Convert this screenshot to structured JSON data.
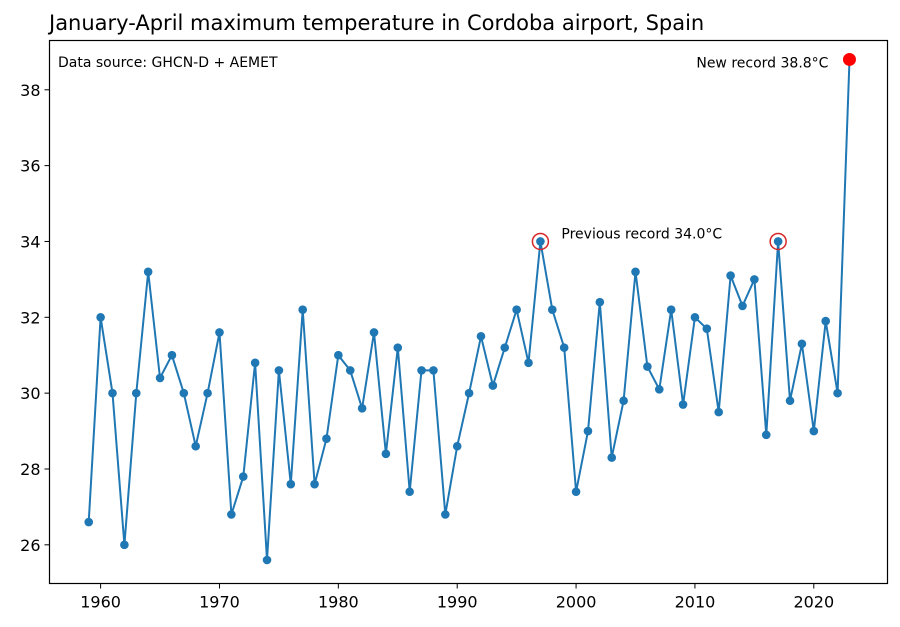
{
  "chart_data": {
    "type": "line",
    "title": "January-April maximum temperature in Cordoba airport, Spain",
    "xlabel": "",
    "ylabel": "",
    "xlim": [
      1955.7,
      2026.2
    ],
    "ylim": [
      24.98,
      39.3
    ],
    "grid": false,
    "xticks": [
      1960,
      1970,
      1980,
      1990,
      2000,
      2010,
      2020
    ],
    "yticks": [
      26,
      28,
      30,
      32,
      34,
      36,
      38
    ],
    "series": [
      {
        "name": "Jan-Apr max temperature",
        "color": "#1f77b4",
        "x": [
          1959,
          1960,
          1961,
          1962,
          1963,
          1964,
          1965,
          1966,
          1967,
          1968,
          1969,
          1970,
          1971,
          1972,
          1973,
          1974,
          1975,
          1976,
          1977,
          1978,
          1979,
          1980,
          1981,
          1982,
          1983,
          1984,
          1985,
          1986,
          1987,
          1988,
          1989,
          1990,
          1991,
          1992,
          1993,
          1994,
          1995,
          1996,
          1997,
          1998,
          1999,
          2000,
          2001,
          2002,
          2003,
          2004,
          2005,
          2006,
          2007,
          2008,
          2009,
          2010,
          2011,
          2012,
          2013,
          2014,
          2015,
          2016,
          2017,
          2018,
          2019,
          2020,
          2021,
          2022,
          2023
        ],
        "values": [
          26.6,
          32.0,
          30.0,
          26.0,
          30.0,
          33.2,
          30.4,
          31.0,
          30.0,
          28.6,
          30.0,
          31.6,
          26.8,
          27.8,
          30.8,
          25.6,
          30.6,
          27.6,
          32.2,
          27.6,
          28.8,
          31.0,
          30.6,
          29.6,
          31.6,
          28.4,
          31.2,
          27.4,
          30.6,
          30.6,
          26.8,
          28.6,
          30.0,
          31.5,
          30.2,
          31.2,
          32.2,
          30.8,
          34.0,
          32.2,
          31.2,
          27.4,
          29.0,
          32.4,
          28.3,
          29.8,
          33.2,
          30.7,
          30.1,
          32.2,
          29.7,
          32.0,
          31.7,
          29.5,
          33.1,
          32.3,
          33.0,
          28.9,
          34.0,
          29.8,
          31.3,
          29.0,
          31.9,
          30.0,
          38.8
        ]
      }
    ],
    "highlights": {
      "previous_record": {
        "years": [
          1997,
          2017
        ],
        "value": 34.0,
        "color": "#d62728",
        "label": "Previous record 34.0°C"
      },
      "new_record": {
        "year": 2023,
        "value": 38.8,
        "color": "#ff0000",
        "label": "New record 38.8°C"
      }
    },
    "source_note": "Data source: GHCN-D + AEMET"
  }
}
